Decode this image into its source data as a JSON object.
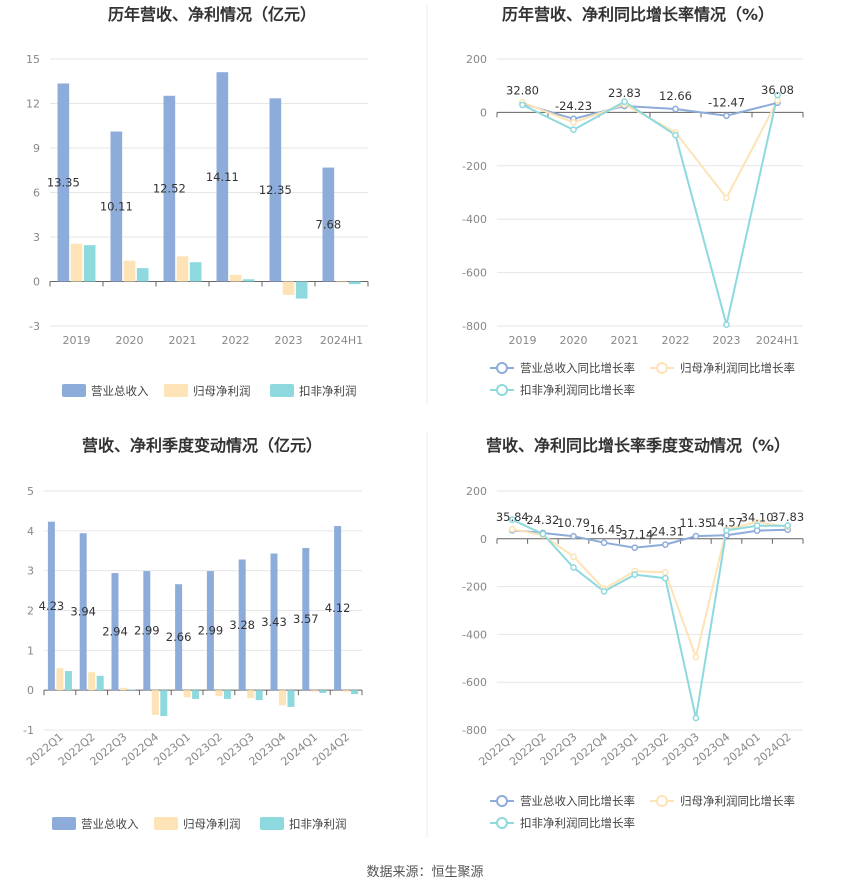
{
  "source": "数据来源：恒生聚源",
  "colors": {
    "revenue": "#8eacd9",
    "net": "#fde3b5",
    "deducted": "#8dd9dd",
    "lineRevenue": "#8eacd9",
    "lineNet": "#fde3b5",
    "lineDeducted": "#8dd9dd"
  },
  "chart_data": [
    {
      "type": "bar",
      "title": "历年营收、净利情况（亿元）",
      "categories": [
        "2019",
        "2020",
        "2021",
        "2022",
        "2023",
        "2024H1"
      ],
      "ylim": [
        -3,
        15
      ],
      "yticks": [
        -3,
        0,
        3,
        6,
        9,
        12,
        15
      ],
      "series": [
        {
          "name": "营业总收入",
          "values": [
            13.35,
            10.11,
            12.52,
            14.11,
            12.35,
            7.68
          ],
          "labels": [
            "13.35",
            "10.11",
            "12.52",
            "14.11",
            "12.35",
            "7.68"
          ]
        },
        {
          "name": "归母净利润",
          "values": [
            2.55,
            1.4,
            1.7,
            0.45,
            -0.9,
            -0.05
          ]
        },
        {
          "name": "扣非净利润",
          "values": [
            2.45,
            0.9,
            1.3,
            0.15,
            -1.15,
            -0.18
          ]
        }
      ],
      "legend": [
        "营业总收入",
        "归母净利润",
        "扣非净利润"
      ],
      "legend_position": "bottom"
    },
    {
      "type": "line",
      "title": "历年营收、净利同比增长率情况（%）",
      "categories": [
        "2019",
        "2020",
        "2021",
        "2022",
        "2023",
        "2024H1"
      ],
      "ylim": [
        -800,
        200
      ],
      "yticks": [
        -800,
        -600,
        -400,
        -200,
        0,
        200
      ],
      "series": [
        {
          "name": "营业总收入同比增长率",
          "values": [
            32.8,
            -24.23,
            23.83,
            12.66,
            -12.47,
            36.08
          ],
          "labels": [
            "32.80",
            "-24.23",
            "23.83",
            "12.66",
            "-12.47",
            "36.08"
          ]
        },
        {
          "name": "归母净利润同比增长率",
          "values": [
            38,
            -38,
            30,
            -75,
            -320,
            45
          ]
        },
        {
          "name": "扣非净利润同比增长率",
          "values": [
            28,
            -65,
            40,
            -85,
            -795,
            65
          ]
        }
      ],
      "legend": [
        "营业总收入同比增长率",
        "归母净利润同比增长率",
        "扣非净利润同比增长率"
      ],
      "legend_position": "bottom"
    },
    {
      "type": "bar",
      "title": "营收、净利季度变动情况（亿元）",
      "categories": [
        "2022Q1",
        "2022Q2",
        "2022Q3",
        "2022Q4",
        "2023Q1",
        "2023Q2",
        "2023Q3",
        "2023Q4",
        "2024Q1",
        "2024Q2"
      ],
      "ylim": [
        -1,
        5
      ],
      "yticks": [
        -1,
        0,
        1,
        2,
        3,
        4,
        5
      ],
      "series": [
        {
          "name": "营业总收入",
          "values": [
            4.23,
            3.94,
            2.94,
            2.99,
            2.66,
            2.99,
            3.28,
            3.43,
            3.57,
            4.12
          ],
          "labels": [
            "4.23",
            "3.94",
            "2.94",
            "2.99",
            "2.66",
            "2.99",
            "3.28",
            "3.43",
            "3.57",
            "4.12"
          ]
        },
        {
          "name": "归母净利润",
          "values": [
            0.55,
            0.45,
            0.06,
            -0.62,
            -0.18,
            -0.15,
            -0.2,
            -0.38,
            -0.04,
            -0.04
          ]
        },
        {
          "name": "扣非净利润",
          "values": [
            0.48,
            0.36,
            0.02,
            -0.65,
            -0.22,
            -0.22,
            -0.25,
            -0.42,
            -0.07,
            -0.1
          ]
        }
      ],
      "legend": [
        "营业总收入",
        "归母净利润",
        "扣非净利润"
      ],
      "legend_position": "bottom"
    },
    {
      "type": "line",
      "title": "营收、净利同比增长率季度变动情况（%）",
      "categories": [
        "2022Q1",
        "2022Q2",
        "2022Q3",
        "2022Q4",
        "2023Q1",
        "2023Q2",
        "2023Q3",
        "2023Q4",
        "2024Q1",
        "2024Q2"
      ],
      "ylim": [
        -800,
        200
      ],
      "yticks": [
        -800,
        -600,
        -400,
        -200,
        0,
        200
      ],
      "series": [
        {
          "name": "营业总收入同比增长率",
          "values": [
            35.84,
            24.32,
            10.79,
            -16.45,
            -37.14,
            -24.31,
            11.35,
            14.57,
            34.1,
            37.83
          ],
          "labels": [
            "35.84",
            "24.32",
            "10.79",
            "-16.45",
            "-37.14",
            "-24.31",
            "11.35",
            "14.57",
            "34.10",
            "37.83"
          ]
        },
        {
          "name": "归母净利润同比增长率",
          "values": [
            40,
            15,
            -75,
            -210,
            -135,
            -140,
            -495,
            40,
            70,
            50
          ]
        },
        {
          "name": "扣非净利润同比增长率",
          "values": [
            80,
            20,
            -120,
            -220,
            -150,
            -165,
            -750,
            35,
            55,
            55
          ]
        }
      ],
      "legend": [
        "营业总收入同比增长率",
        "归母净利润同比增长率",
        "扣非净利润同比增长率"
      ],
      "legend_position": "bottom"
    }
  ]
}
